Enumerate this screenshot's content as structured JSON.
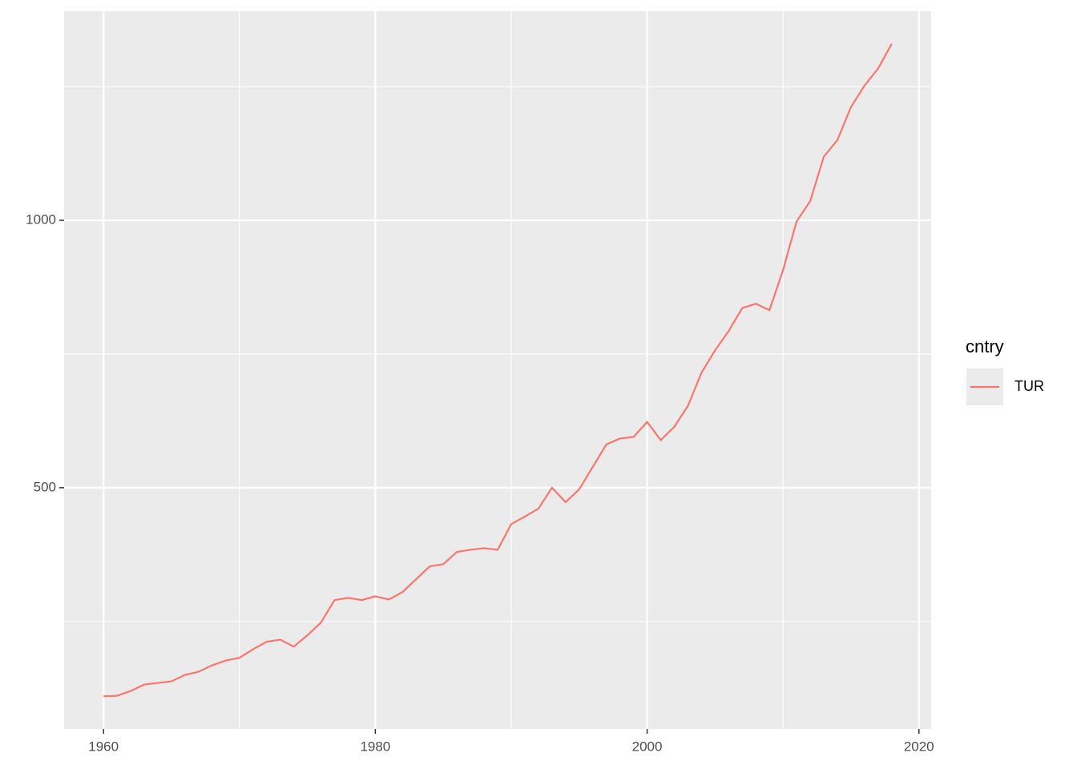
{
  "chart_data": {
    "type": "line",
    "x": [
      1960,
      1961,
      1962,
      1963,
      1964,
      1965,
      1966,
      1967,
      1968,
      1969,
      1970,
      1971,
      1972,
      1973,
      1974,
      1975,
      1976,
      1977,
      1978,
      1979,
      1980,
      1981,
      1982,
      1983,
      1984,
      1985,
      1986,
      1987,
      1988,
      1989,
      1990,
      1991,
      1992,
      1993,
      1994,
      1995,
      1996,
      1997,
      1998,
      1999,
      2000,
      2001,
      2002,
      2003,
      2004,
      2005,
      2006,
      2007,
      2008,
      2009,
      2010,
      2011,
      2012,
      2013,
      2014,
      2015,
      2016,
      2017,
      2018
    ],
    "series": [
      {
        "name": "TUR",
        "color": "#f8766d",
        "values": [
          110,
          111,
          120,
          132,
          135,
          138,
          150,
          156,
          168,
          177,
          182,
          198,
          212,
          216,
          203,
          224,
          248,
          290,
          294,
          290,
          297,
          291,
          305,
          329,
          353,
          357,
          380,
          384,
          387,
          384,
          432,
          446,
          461,
          500,
          473,
          497,
          539,
          581,
          592,
          595,
          623,
          589,
          614,
          653,
          715,
          757,
          793,
          836,
          844,
          832,
          907,
          998,
          1036,
          1119,
          1150,
          1212,
          1252,
          1284,
          1330
        ]
      }
    ],
    "legend_title": "cntry",
    "xlim": [
      1957.1,
      2020.9
    ],
    "xticks": [
      1960,
      1980,
      2000,
      2020
    ],
    "x_minor_grid": [
      1970,
      1990,
      2010
    ],
    "ylim": [
      49,
      1391
    ],
    "yticks": [
      500,
      1000
    ],
    "y_minor_grid": [
      250,
      750,
      1250
    ],
    "grid": true
  }
}
